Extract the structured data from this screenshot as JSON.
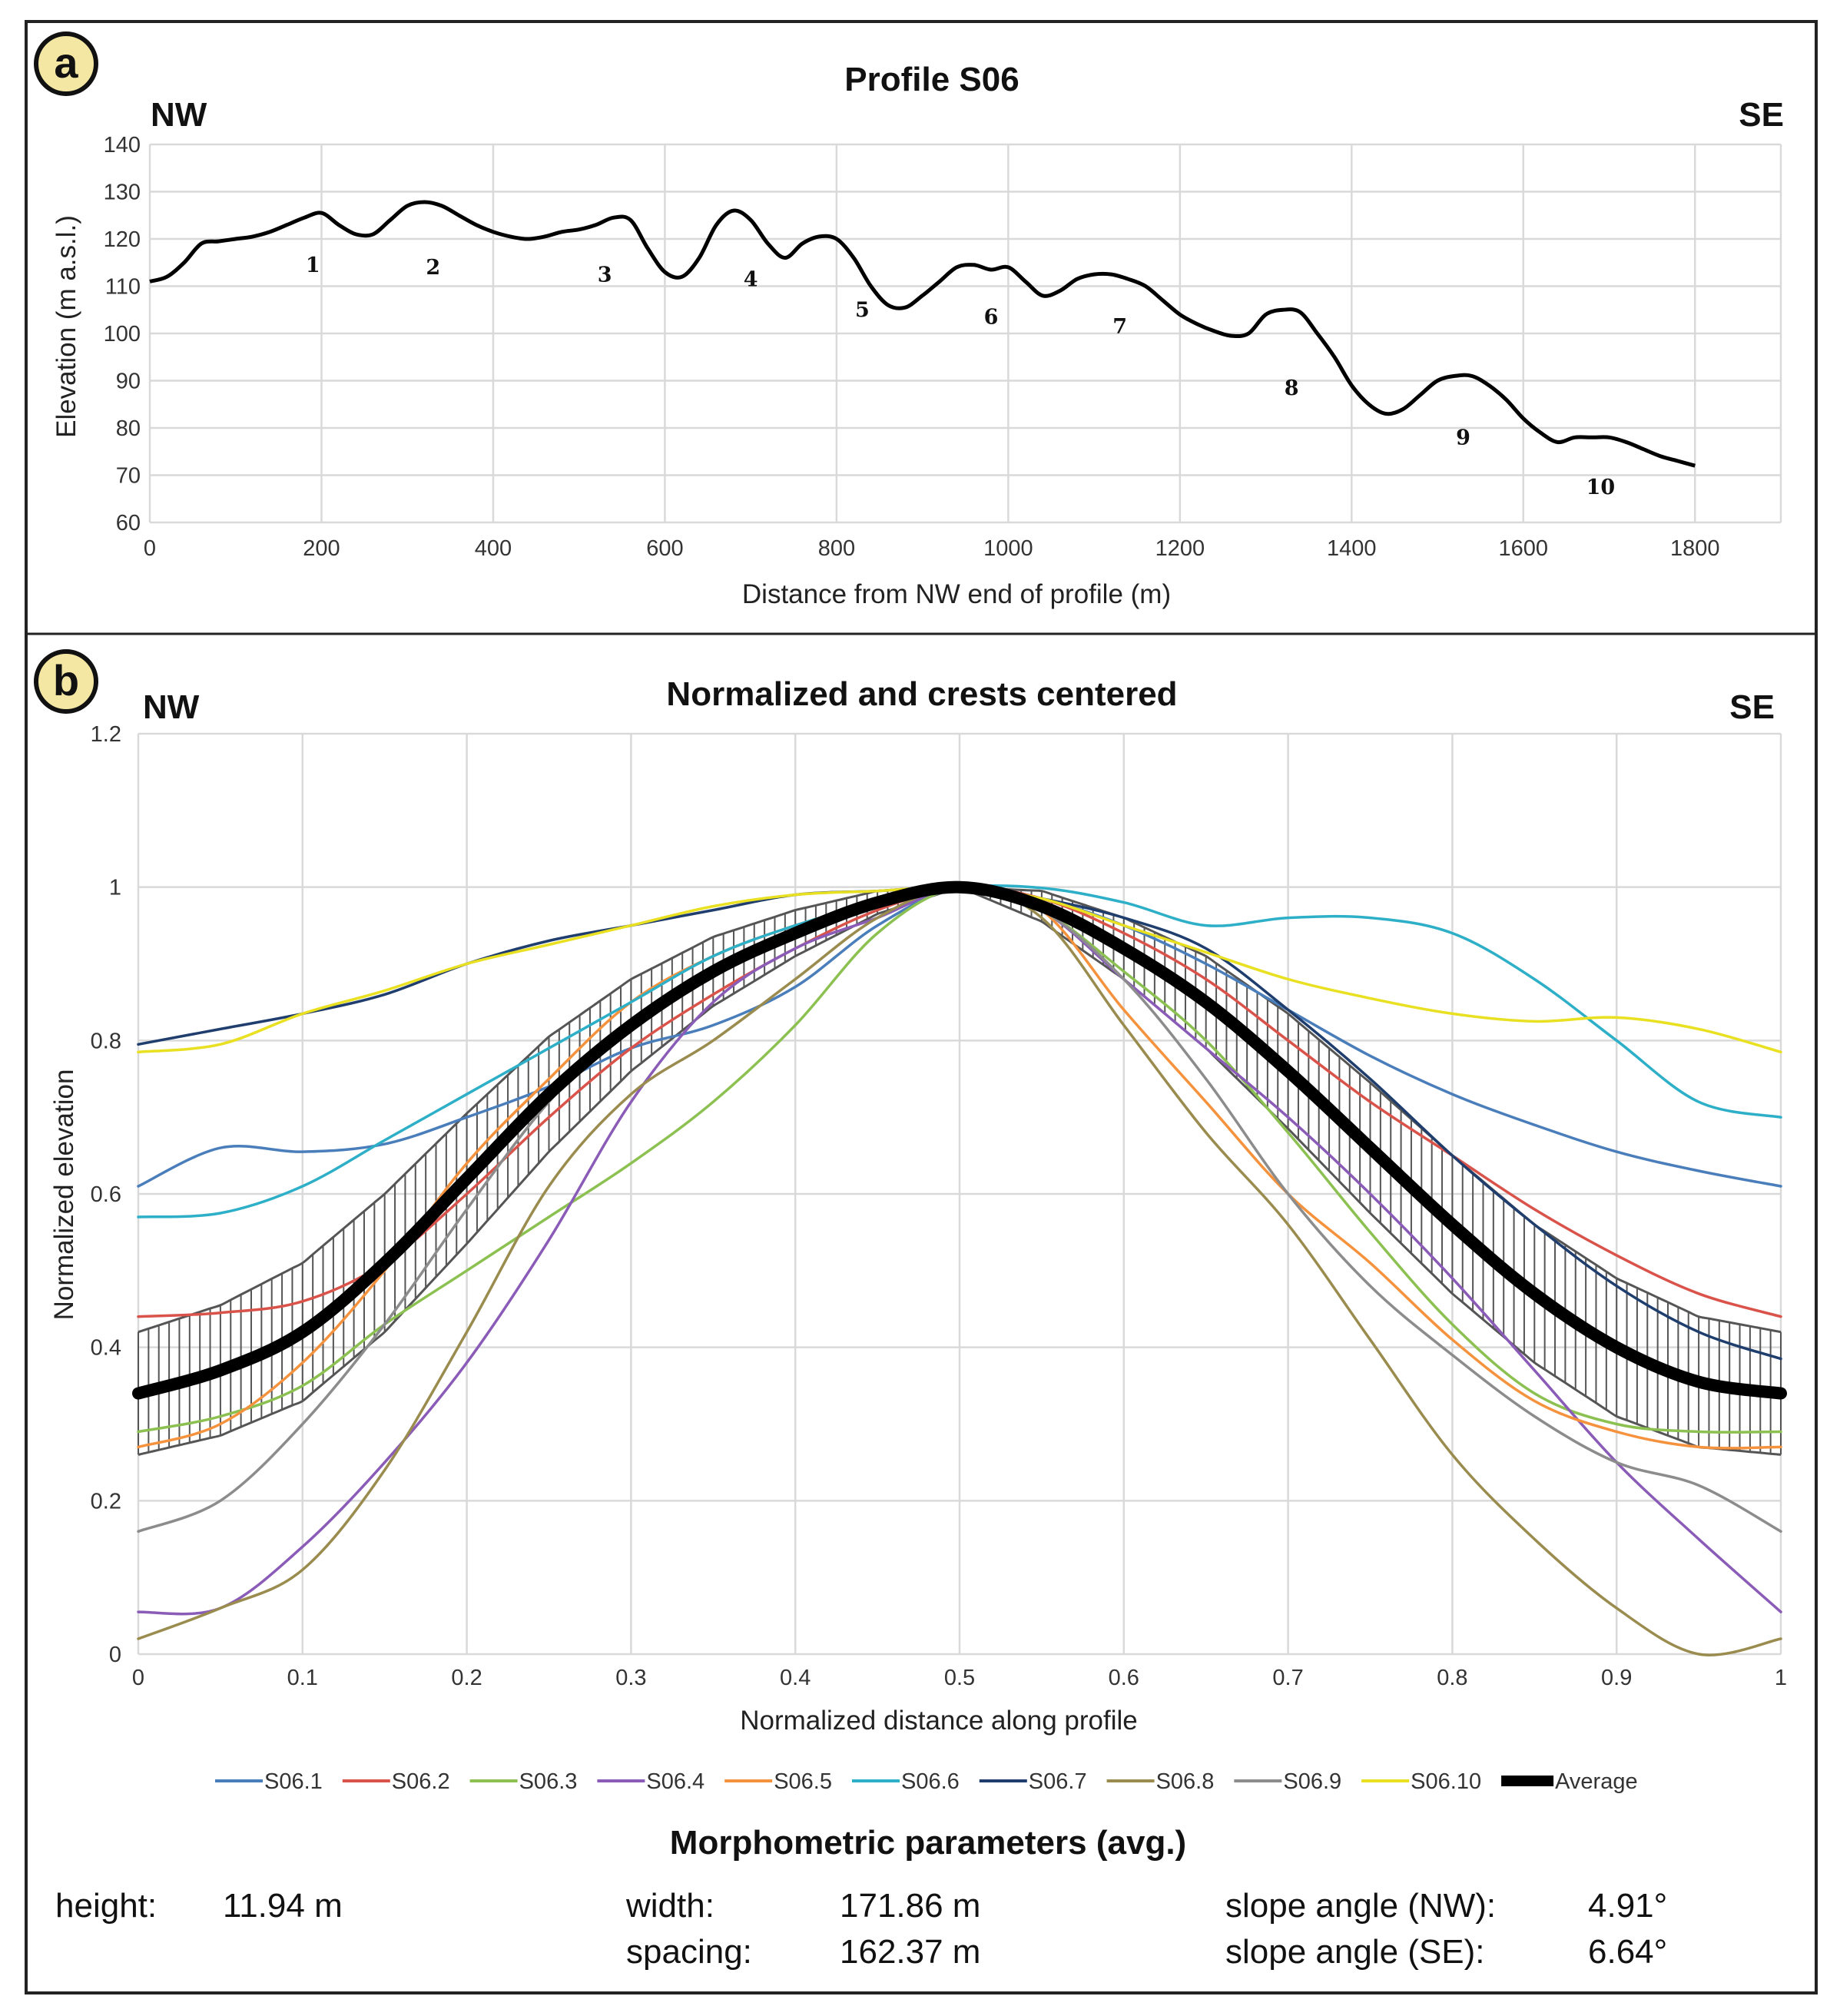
{
  "panel_letters": [
    "a",
    "b"
  ],
  "chart_data": [
    {
      "type": "line",
      "panel": "a",
      "title": "Profile S06",
      "direction_left": "NW",
      "direction_right": "SE",
      "xlabel": "Distance from NW end of profile (m)",
      "ylabel": "Elevation (m a.s.l.)",
      "xlim": [
        0,
        1900
      ],
      "ylim": [
        60,
        140
      ],
      "x_ticks": [
        "0",
        "200",
        "400",
        "600",
        "800",
        "1000",
        "1200",
        "1400",
        "1600",
        "1800"
      ],
      "y_ticks": [
        "60",
        "70",
        "80",
        "90",
        "100",
        "110",
        "120",
        "130",
        "140"
      ],
      "series": [
        {
          "name": "Profile S06",
          "color": "#000000",
          "x": [
            0,
            20,
            40,
            60,
            80,
            100,
            120,
            140,
            160,
            180,
            200,
            220,
            240,
            260,
            280,
            300,
            320,
            340,
            360,
            380,
            400,
            420,
            440,
            460,
            480,
            500,
            520,
            540,
            560,
            580,
            600,
            620,
            640,
            660,
            680,
            700,
            720,
            740,
            760,
            780,
            800,
            820,
            840,
            860,
            880,
            900,
            920,
            940,
            960,
            980,
            1000,
            1020,
            1040,
            1060,
            1080,
            1100,
            1120,
            1140,
            1160,
            1180,
            1200,
            1220,
            1240,
            1260,
            1280,
            1300,
            1320,
            1340,
            1360,
            1380,
            1400,
            1420,
            1440,
            1460,
            1480,
            1500,
            1520,
            1540,
            1560,
            1580,
            1600,
            1620,
            1640,
            1660,
            1680,
            1700,
            1720,
            1740,
            1760,
            1780,
            1800
          ],
          "y": [
            111,
            112,
            115,
            119,
            119.5,
            120,
            120.5,
            121.5,
            123,
            124.5,
            125.5,
            123,
            121,
            121,
            124,
            127,
            127.8,
            127,
            125,
            123,
            121.5,
            120.5,
            120,
            120.5,
            121.5,
            122,
            123,
            124.5,
            124,
            118,
            113,
            112,
            116,
            123,
            126,
            124,
            119,
            116,
            119,
            120.5,
            120,
            116,
            110,
            106,
            105.5,
            108,
            111,
            114,
            114.5,
            113.5,
            114,
            111,
            108,
            109,
            111.5,
            112.5,
            112.5,
            111.5,
            110,
            107,
            104,
            102,
            100.5,
            99.5,
            100,
            104,
            105,
            104.5,
            100,
            95,
            89,
            85,
            83,
            84,
            87,
            90,
            91,
            91,
            89,
            86,
            82,
            79,
            77,
            78,
            78,
            78,
            77,
            75.5,
            74,
            73,
            72
          ]
        }
      ],
      "annotations": [
        {
          "text": "1",
          "x": 190,
          "y": 113
        },
        {
          "text": "2",
          "x": 330,
          "y": 112.5
        },
        {
          "text": "3",
          "x": 530,
          "y": 111
        },
        {
          "text": "4",
          "x": 700,
          "y": 110
        },
        {
          "text": "5",
          "x": 830,
          "y": 103.5
        },
        {
          "text": "6",
          "x": 980,
          "y": 102
        },
        {
          "text": "7",
          "x": 1130,
          "y": 100
        },
        {
          "text": "8",
          "x": 1330,
          "y": 87
        },
        {
          "text": "9",
          "x": 1530,
          "y": 76.5
        },
        {
          "text": "10",
          "x": 1690,
          "y": 66
        }
      ],
      "grid": true
    },
    {
      "type": "line",
      "panel": "b",
      "title": "Normalized and crests centered",
      "direction_left": "NW",
      "direction_right": "SE",
      "xlabel": "Normalized distance along profile",
      "ylabel": "Normalized elevation",
      "xlim": [
        0,
        1
      ],
      "ylim": [
        0,
        1.2
      ],
      "x_ticks": [
        "0",
        "0.1",
        "0.2",
        "0.3",
        "0.4",
        "0.5",
        "0.6",
        "0.7",
        "0.8",
        "0.9",
        "1"
      ],
      "y_ticks": [
        "0",
        "0.2",
        "0.4",
        "0.6",
        "0.8",
        "1",
        "1.2"
      ],
      "x": [
        0,
        0.05,
        0.1,
        0.15,
        0.2,
        0.25,
        0.3,
        0.35,
        0.4,
        0.45,
        0.5,
        0.55,
        0.6,
        0.65,
        0.7,
        0.75,
        0.8,
        0.85,
        0.9,
        0.95,
        1
      ],
      "series": [
        {
          "name": "S06.1",
          "color": "#4a7ebb",
          "values": [
            0.61,
            0.66,
            0.655,
            0.665,
            0.7,
            0.74,
            0.79,
            0.82,
            0.87,
            0.95,
            1.0,
            0.985,
            0.95,
            0.9,
            0.84,
            0.78,
            0.73,
            0.69,
            0.655,
            0.63,
            0.61
          ]
        },
        {
          "name": "S06.2",
          "color": "#d9534a",
          "values": [
            0.44,
            0.445,
            0.46,
            0.51,
            0.6,
            0.7,
            0.79,
            0.86,
            0.92,
            0.97,
            1.0,
            0.985,
            0.94,
            0.88,
            0.8,
            0.72,
            0.65,
            0.58,
            0.52,
            0.47,
            0.44
          ]
        },
        {
          "name": "S06.3",
          "color": "#8cc152",
          "values": [
            0.29,
            0.31,
            0.35,
            0.43,
            0.5,
            0.57,
            0.64,
            0.72,
            0.82,
            0.94,
            1.0,
            0.97,
            0.89,
            0.8,
            0.68,
            0.55,
            0.43,
            0.34,
            0.3,
            0.29,
            0.29
          ]
        },
        {
          "name": "S06.4",
          "color": "#8a5cb8",
          "values": [
            0.055,
            0.06,
            0.14,
            0.25,
            0.38,
            0.54,
            0.72,
            0.85,
            0.92,
            0.96,
            1.0,
            0.97,
            0.88,
            0.79,
            0.7,
            0.6,
            0.49,
            0.37,
            0.25,
            0.15,
            0.055
          ]
        },
        {
          "name": "S06.5",
          "color": "#f5923e",
          "values": [
            0.27,
            0.3,
            0.38,
            0.5,
            0.64,
            0.75,
            0.85,
            0.91,
            0.95,
            0.98,
            1.0,
            0.97,
            0.84,
            0.72,
            0.6,
            0.51,
            0.41,
            0.33,
            0.29,
            0.27,
            0.27
          ]
        },
        {
          "name": "S06.6",
          "color": "#2eafc8",
          "values": [
            0.57,
            0.575,
            0.61,
            0.67,
            0.73,
            0.79,
            0.85,
            0.91,
            0.95,
            0.98,
            1.0,
            0.999,
            0.98,
            0.95,
            0.96,
            0.96,
            0.94,
            0.88,
            0.8,
            0.72,
            0.7
          ]
        },
        {
          "name": "S06.7",
          "color": "#1f3e6e",
          "values": [
            0.795,
            0.815,
            0.835,
            0.86,
            0.9,
            0.93,
            0.95,
            0.97,
            0.99,
            0.995,
            1.0,
            0.985,
            0.96,
            0.92,
            0.84,
            0.75,
            0.65,
            0.56,
            0.48,
            0.42,
            0.385
          ]
        },
        {
          "name": "S06.8",
          "color": "#9a8c4e",
          "values": [
            0.02,
            0.06,
            0.11,
            0.24,
            0.42,
            0.61,
            0.73,
            0.8,
            0.88,
            0.96,
            1.0,
            0.96,
            0.82,
            0.68,
            0.56,
            0.41,
            0.26,
            0.15,
            0.06,
            0.0,
            0.02
          ]
        },
        {
          "name": "S06.9",
          "color": "#8c8c8c",
          "values": [
            0.16,
            0.2,
            0.3,
            0.43,
            0.58,
            0.72,
            0.82,
            0.89,
            0.94,
            0.98,
            1.0,
            0.97,
            0.88,
            0.75,
            0.6,
            0.48,
            0.39,
            0.31,
            0.25,
            0.22,
            0.16
          ]
        },
        {
          "name": "S06.10",
          "color": "#e8e021",
          "values": [
            0.785,
            0.795,
            0.835,
            0.865,
            0.9,
            0.925,
            0.95,
            0.975,
            0.99,
            0.995,
            1.0,
            0.985,
            0.95,
            0.915,
            0.88,
            0.855,
            0.835,
            0.825,
            0.83,
            0.815,
            0.785
          ]
        },
        {
          "name": "Average",
          "color": "#000000",
          "values": [
            0.34,
            0.37,
            0.42,
            0.51,
            0.62,
            0.73,
            0.82,
            0.89,
            0.94,
            0.98,
            1.0,
            0.975,
            0.92,
            0.85,
            0.76,
            0.66,
            0.56,
            0.47,
            0.4,
            0.355,
            0.34
          ]
        }
      ],
      "error_bars": {
        "of": "Average",
        "half_width": [
          0.08,
          0.085,
          0.09,
          0.09,
          0.085,
          0.075,
          0.06,
          0.045,
          0.03,
          0.015,
          0.0,
          0.02,
          0.04,
          0.06,
          0.075,
          0.085,
          0.09,
          0.09,
          0.09,
          0.085,
          0.08
        ]
      },
      "legend_position": "bottom",
      "grid": true
    }
  ],
  "parameters": {
    "title": "Morphometric parameters (avg.)",
    "height_label": "height:",
    "height_value": "11.94 m",
    "width_label": "width:",
    "width_value": "171.86 m",
    "spacing_label": "spacing:",
    "spacing_value": "162.37 m",
    "slope_nw_label": "slope angle (NW):",
    "slope_nw_value": "4.91°",
    "slope_se_label": "slope angle (SE):",
    "slope_se_value": "6.64°"
  }
}
